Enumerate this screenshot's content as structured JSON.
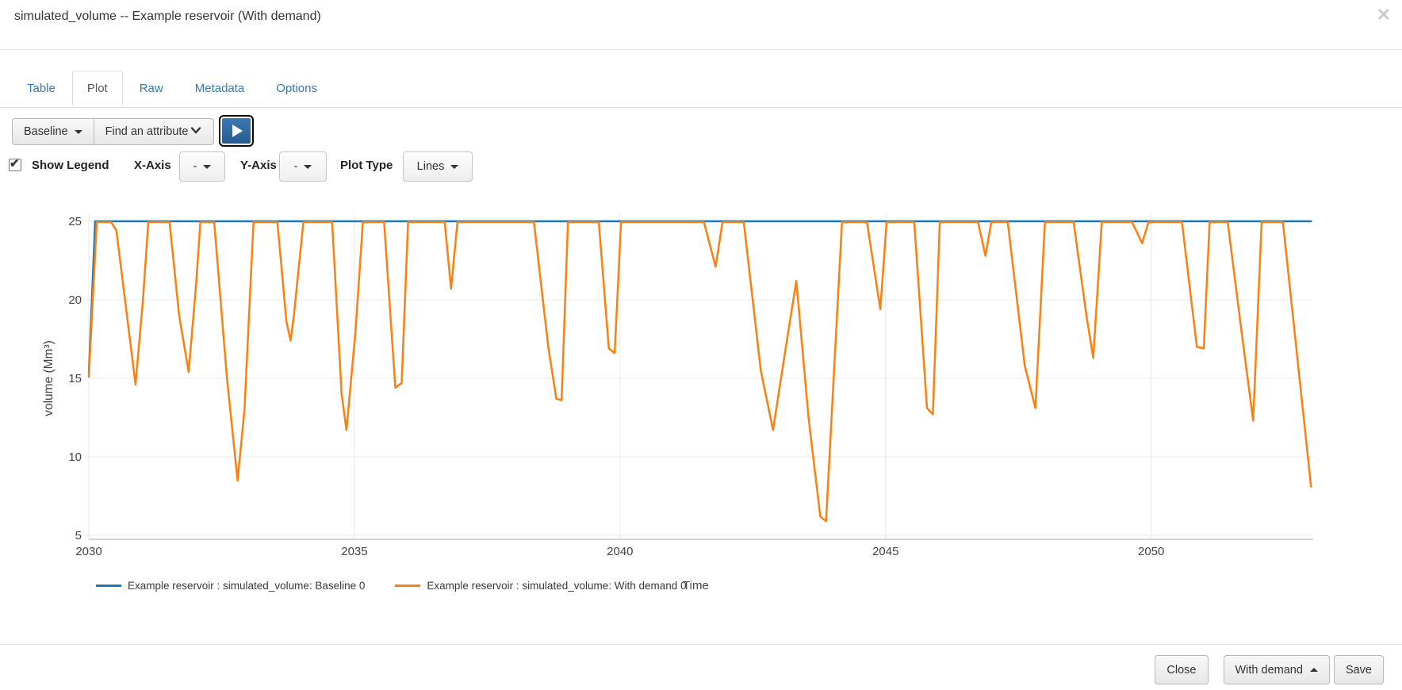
{
  "modal": {
    "title": "simulated_volume -- Example reservoir (With demand)",
    "close_icon": "✕"
  },
  "tabs": [
    {
      "label": "Table",
      "active": false
    },
    {
      "label": "Plot",
      "active": true
    },
    {
      "label": "Raw",
      "active": false
    },
    {
      "label": "Metadata",
      "active": false
    },
    {
      "label": "Options",
      "active": false
    }
  ],
  "toolbar": {
    "scenario_button_label": "Baseline",
    "attribute_button_label": "Find an attribute",
    "play_icon": "play"
  },
  "plot_controls": {
    "show_legend_label": "Show Legend",
    "show_legend_checked": true,
    "checkmark": "✔",
    "x_axis_label": "X-Axis",
    "x_axis_value": "-",
    "y_axis_label": "Y-Axis",
    "y_axis_value": "-",
    "plot_type_label": "Plot Type",
    "plot_type_value": "Lines"
  },
  "chart_data": {
    "type": "line",
    "title": "",
    "xlabel": "Time",
    "ylabel": "volume (Mm³)",
    "xlim": [
      2030,
      2053.05
    ],
    "ylim": [
      4.8,
      25.45
    ],
    "xticks": [
      2030,
      2035,
      2040,
      2045,
      2050
    ],
    "yticks": [
      25,
      20,
      15,
      10,
      5
    ],
    "grid": true,
    "legend_position": "bottom",
    "series": [
      {
        "name": "Example reservoir : simulated_volume: Baseline 0",
        "color": "#1f77b4",
        "points": [
          [
            2030.0,
            15.3
          ],
          [
            2030.12,
            25
          ],
          [
            2053.01,
            25
          ]
        ]
      },
      {
        "name": "Example reservoir : simulated_volume: With demand 0",
        "color": "#ff7f0e",
        "points": [
          [
            2030.0,
            15.1
          ],
          [
            2030.15,
            24.95
          ],
          [
            2030.42,
            24.95
          ],
          [
            2030.52,
            24.4
          ],
          [
            2030.88,
            14.6
          ],
          [
            2031.02,
            20.0
          ],
          [
            2031.12,
            24.95
          ],
          [
            2031.52,
            24.95
          ],
          [
            2031.7,
            19.0
          ],
          [
            2031.88,
            15.4
          ],
          [
            2032.02,
            21.0
          ],
          [
            2032.1,
            24.95
          ],
          [
            2032.36,
            24.95
          ],
          [
            2032.6,
            15.0
          ],
          [
            2032.8,
            8.5
          ],
          [
            2032.93,
            13.0
          ],
          [
            2033.1,
            24.95
          ],
          [
            2033.55,
            24.95
          ],
          [
            2033.72,
            18.6
          ],
          [
            2033.8,
            17.4
          ],
          [
            2033.86,
            19.0
          ],
          [
            2034.04,
            24.95
          ],
          [
            2034.58,
            24.95
          ],
          [
            2034.76,
            14.0
          ],
          [
            2034.85,
            11.7
          ],
          [
            2035.02,
            18.0
          ],
          [
            2035.16,
            24.95
          ],
          [
            2035.56,
            24.95
          ],
          [
            2035.77,
            14.4
          ],
          [
            2035.89,
            14.7
          ],
          [
            2036.01,
            24.95
          ],
          [
            2036.7,
            24.95
          ],
          [
            2036.82,
            20.7
          ],
          [
            2036.94,
            24.95
          ],
          [
            2038.38,
            24.95
          ],
          [
            2038.65,
            17.0
          ],
          [
            2038.8,
            13.7
          ],
          [
            2038.9,
            13.6
          ],
          [
            2039.02,
            24.95
          ],
          [
            2039.6,
            24.95
          ],
          [
            2039.79,
            16.9
          ],
          [
            2039.9,
            16.6
          ],
          [
            2040.02,
            24.95
          ],
          [
            2041.58,
            24.95
          ],
          [
            2041.8,
            22.1
          ],
          [
            2041.93,
            24.95
          ],
          [
            2042.33,
            24.95
          ],
          [
            2042.65,
            15.5
          ],
          [
            2042.88,
            11.7
          ],
          [
            2043.1,
            16.5
          ],
          [
            2043.32,
            21.2
          ],
          [
            2043.55,
            12.5
          ],
          [
            2043.77,
            6.2
          ],
          [
            2043.88,
            5.9
          ],
          [
            2044.18,
            24.95
          ],
          [
            2044.65,
            24.95
          ],
          [
            2044.9,
            19.4
          ],
          [
            2045.02,
            24.95
          ],
          [
            2045.54,
            24.95
          ],
          [
            2045.78,
            13.1
          ],
          [
            2045.89,
            12.7
          ],
          [
            2046.02,
            24.95
          ],
          [
            2046.74,
            24.95
          ],
          [
            2046.88,
            22.8
          ],
          [
            2046.99,
            24.95
          ],
          [
            2047.3,
            24.95
          ],
          [
            2047.62,
            15.8
          ],
          [
            2047.82,
            13.1
          ],
          [
            2048.0,
            24.95
          ],
          [
            2048.54,
            24.95
          ],
          [
            2048.78,
            19.0
          ],
          [
            2048.91,
            16.3
          ],
          [
            2049.07,
            24.95
          ],
          [
            2049.64,
            24.95
          ],
          [
            2049.83,
            23.6
          ],
          [
            2049.95,
            24.95
          ],
          [
            2050.58,
            24.95
          ],
          [
            2050.86,
            17.0
          ],
          [
            2050.99,
            16.9
          ],
          [
            2051.1,
            24.95
          ],
          [
            2051.44,
            24.95
          ],
          [
            2051.7,
            18.0
          ],
          [
            2051.92,
            12.3
          ],
          [
            2052.08,
            24.95
          ],
          [
            2052.48,
            24.95
          ],
          [
            2053.01,
            8.1
          ]
        ]
      }
    ]
  },
  "footer": {
    "close_label": "Close",
    "scenario_label": "With demand",
    "save_label": "Save"
  },
  "colors": {
    "baseline_line": "#1f77b4",
    "with_demand_line": "#ff7f0e",
    "link_blue": "#337ab7",
    "gridline": "#e8e8e8",
    "axis_line": "#d5d5d5"
  }
}
